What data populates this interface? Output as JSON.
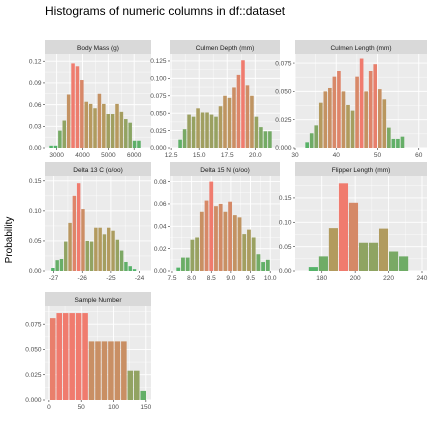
{
  "figure": {
    "title": "Histograms of numeric columns in df::dataset",
    "ylabel": "Probability",
    "colors": {
      "high": "#f07b6e",
      "mid": "#b49a5e",
      "low": "#4cb56a",
      "panel_bg": "#ebebeb",
      "strip_bg": "#d9d9d9",
      "grid": "#ffffff"
    }
  },
  "chart_data": [
    {
      "type": "bar",
      "title": "Body Mass (g)",
      "xlim": [
        2550,
        6650
      ],
      "ylim": [
        0,
        0.13
      ],
      "xticks": [
        3000,
        4000,
        5000,
        6000
      ],
      "xtick_labels": [
        "3000",
        "4000",
        "5000",
        "6000"
      ],
      "yticks": [
        0,
        0.03,
        0.06,
        0.09,
        0.12
      ],
      "ytick_labels": [
        "0.00",
        "0.03",
        "0.06",
        "0.09",
        "0.12"
      ],
      "bins": [
        {
          "x0": 2700,
          "x1": 2870,
          "y": 0.003
        },
        {
          "x0": 2870,
          "x1": 3040,
          "y": 0.003
        },
        {
          "x0": 3040,
          "x1": 3210,
          "y": 0.024
        },
        {
          "x0": 3210,
          "x1": 3380,
          "y": 0.038
        },
        {
          "x0": 3380,
          "x1": 3550,
          "y": 0.074
        },
        {
          "x0": 3550,
          "x1": 3720,
          "y": 0.117
        },
        {
          "x0": 3720,
          "x1": 3890,
          "y": 0.113
        },
        {
          "x0": 3890,
          "x1": 4060,
          "y": 0.094
        },
        {
          "x0": 4060,
          "x1": 4230,
          "y": 0.064
        },
        {
          "x0": 4230,
          "x1": 4400,
          "y": 0.061
        },
        {
          "x0": 4400,
          "x1": 4570,
          "y": 0.055
        },
        {
          "x0": 4570,
          "x1": 4740,
          "y": 0.075
        },
        {
          "x0": 4740,
          "x1": 4910,
          "y": 0.061
        },
        {
          "x0": 4910,
          "x1": 5080,
          "y": 0.047
        },
        {
          "x0": 5080,
          "x1": 5250,
          "y": 0.047
        },
        {
          "x0": 5250,
          "x1": 5420,
          "y": 0.061
        },
        {
          "x0": 5420,
          "x1": 5590,
          "y": 0.05
        },
        {
          "x0": 5590,
          "x1": 5760,
          "y": 0.04
        },
        {
          "x0": 5760,
          "x1": 5930,
          "y": 0.035
        },
        {
          "x0": 5930,
          "x1": 6100,
          "y": 0.01
        },
        {
          "x0": 6100,
          "x1": 6270,
          "y": 0.01
        }
      ]
    },
    {
      "type": "bar",
      "title": "Culmen Depth (mm)",
      "xlim": [
        12.4,
        22.2
      ],
      "ylim": [
        0,
        0.135
      ],
      "xticks": [
        12.5,
        15.0,
        17.5,
        20.0
      ],
      "xtick_labels": [
        "12.5",
        "15.0",
        "17.5",
        "20.0"
      ],
      "yticks": [
        0,
        0.025,
        0.05,
        0.075,
        0.1,
        0.125
      ],
      "ytick_labels": [
        "0.000",
        "0.025",
        "0.050",
        "0.075",
        "0.100",
        "0.125"
      ],
      "bins": [
        {
          "x0": 13.1,
          "x1": 13.5,
          "y": 0.012
        },
        {
          "x0": 13.5,
          "x1": 13.9,
          "y": 0.027
        },
        {
          "x0": 13.9,
          "x1": 14.3,
          "y": 0.048
        },
        {
          "x0": 14.3,
          "x1": 14.7,
          "y": 0.045
        },
        {
          "x0": 14.7,
          "x1": 15.1,
          "y": 0.057
        },
        {
          "x0": 15.1,
          "x1": 15.5,
          "y": 0.051
        },
        {
          "x0": 15.5,
          "x1": 15.9,
          "y": 0.051
        },
        {
          "x0": 15.9,
          "x1": 16.3,
          "y": 0.048
        },
        {
          "x0": 16.3,
          "x1": 16.7,
          "y": 0.045
        },
        {
          "x0": 16.7,
          "x1": 17.1,
          "y": 0.06
        },
        {
          "x0": 17.1,
          "x1": 17.5,
          "y": 0.075
        },
        {
          "x0": 17.5,
          "x1": 17.9,
          "y": 0.072
        },
        {
          "x0": 17.9,
          "x1": 18.3,
          "y": 0.087
        },
        {
          "x0": 18.3,
          "x1": 18.7,
          "y": 0.105
        },
        {
          "x0": 18.7,
          "x1": 19.1,
          "y": 0.126
        },
        {
          "x0": 19.1,
          "x1": 19.5,
          "y": 0.09
        },
        {
          "x0": 19.5,
          "x1": 19.9,
          "y": 0.075
        },
        {
          "x0": 19.9,
          "x1": 20.3,
          "y": 0.045
        },
        {
          "x0": 20.3,
          "x1": 20.7,
          "y": 0.03
        },
        {
          "x0": 20.7,
          "x1": 21.1,
          "y": 0.024
        },
        {
          "x0": 21.1,
          "x1": 21.5,
          "y": 0.024
        }
      ]
    },
    {
      "type": "bar",
      "title": "Culmen Length (mm)",
      "xlim": [
        30,
        62
      ],
      "ylim": [
        0,
        0.083
      ],
      "xticks": [
        30,
        40,
        50,
        60
      ],
      "xtick_labels": [
        "30",
        "40",
        "50",
        "60"
      ],
      "yticks": [
        0,
        0.025,
        0.05,
        0.075
      ],
      "ytick_labels": [
        "0.000",
        "0.025",
        "0.050",
        "0.075"
      ],
      "bins": [
        {
          "x0": 32.4,
          "x1": 33.5,
          "y": 0.005
        },
        {
          "x0": 33.5,
          "x1": 34.6,
          "y": 0.013
        },
        {
          "x0": 34.6,
          "x1": 35.7,
          "y": 0.02
        },
        {
          "x0": 35.7,
          "x1": 36.8,
          "y": 0.04
        },
        {
          "x0": 36.8,
          "x1": 37.9,
          "y": 0.05
        },
        {
          "x0": 37.9,
          "x1": 39.0,
          "y": 0.053
        },
        {
          "x0": 39.0,
          "x1": 40.1,
          "y": 0.063
        },
        {
          "x0": 40.1,
          "x1": 41.2,
          "y": 0.068
        },
        {
          "x0": 41.2,
          "x1": 42.3,
          "y": 0.05
        },
        {
          "x0": 42.3,
          "x1": 43.4,
          "y": 0.038
        },
        {
          "x0": 43.4,
          "x1": 44.5,
          "y": 0.033
        },
        {
          "x0": 44.5,
          "x1": 45.6,
          "y": 0.063
        },
        {
          "x0": 45.6,
          "x1": 46.7,
          "y": 0.079
        },
        {
          "x0": 46.7,
          "x1": 47.8,
          "y": 0.05
        },
        {
          "x0": 47.8,
          "x1": 48.9,
          "y": 0.068
        },
        {
          "x0": 48.9,
          "x1": 50.0,
          "y": 0.074
        },
        {
          "x0": 50.0,
          "x1": 51.1,
          "y": 0.052
        },
        {
          "x0": 51.1,
          "x1": 52.2,
          "y": 0.043
        },
        {
          "x0": 52.2,
          "x1": 53.3,
          "y": 0.018
        },
        {
          "x0": 53.3,
          "x1": 54.4,
          "y": 0.008
        },
        {
          "x0": 54.4,
          "x1": 55.5,
          "y": 0.008
        },
        {
          "x0": 55.5,
          "x1": 56.6,
          "y": 0.01
        }
      ]
    },
    {
      "type": "bar",
      "title": "Delta 13 C (o/oo)",
      "xlim": [
        -27.3,
        -23.6
      ],
      "ylim": [
        0,
        0.158
      ],
      "xticks": [
        -27,
        -26,
        -25,
        -24
      ],
      "xtick_labels": [
        "-27",
        "-26",
        "-25",
        "-24"
      ],
      "yticks": [
        0,
        0.05,
        0.1,
        0.15
      ],
      "ytick_labels": [
        "0.00",
        "0.05",
        "0.10",
        "0.15"
      ],
      "bins": [
        {
          "x0": -27.1,
          "x1": -26.95,
          "y": 0.005
        },
        {
          "x0": -26.95,
          "x1": -26.8,
          "y": 0.018
        },
        {
          "x0": -26.8,
          "x1": -26.65,
          "y": 0.02
        },
        {
          "x0": -26.65,
          "x1": -26.5,
          "y": 0.049
        },
        {
          "x0": -26.5,
          "x1": -26.35,
          "y": 0.08
        },
        {
          "x0": -26.35,
          "x1": -26.2,
          "y": 0.125
        },
        {
          "x0": -26.2,
          "x1": -26.05,
          "y": 0.146
        },
        {
          "x0": -26.05,
          "x1": -25.9,
          "y": 0.103
        },
        {
          "x0": -25.9,
          "x1": -25.75,
          "y": 0.05
        },
        {
          "x0": -25.75,
          "x1": -25.6,
          "y": 0.049
        },
        {
          "x0": -25.6,
          "x1": -25.45,
          "y": 0.072
        },
        {
          "x0": -25.45,
          "x1": -25.3,
          "y": 0.072
        },
        {
          "x0": -25.3,
          "x1": -25.15,
          "y": 0.061
        },
        {
          "x0": -25.15,
          "x1": -25.0,
          "y": 0.072
        },
        {
          "x0": -25.0,
          "x1": -24.85,
          "y": 0.067
        },
        {
          "x0": -24.85,
          "x1": -24.7,
          "y": 0.052
        },
        {
          "x0": -24.7,
          "x1": -24.55,
          "y": 0.034
        },
        {
          "x0": -24.55,
          "x1": -24.4,
          "y": 0.015
        },
        {
          "x0": -24.4,
          "x1": -24.25,
          "y": 0.008
        },
        {
          "x0": -24.25,
          "x1": -24.1,
          "y": 0.003
        }
      ]
    },
    {
      "type": "bar",
      "title": "Delta 15 N (o/oo)",
      "xlim": [
        7.45,
        10.25
      ],
      "ylim": [
        0,
        0.085
      ],
      "xticks": [
        7.5,
        8.0,
        8.5,
        9.0,
        9.5,
        10.0
      ],
      "xtick_labels": [
        "7.5",
        "8.0",
        "8.5",
        "9.0",
        "9.5",
        "10.0"
      ],
      "yticks": [
        0,
        0.02,
        0.04,
        0.06,
        0.08
      ],
      "ytick_labels": [
        "0.00",
        "0.02",
        "0.04",
        "0.06",
        "0.08"
      ],
      "bins": [
        {
          "x0": 7.6,
          "x1": 7.72,
          "y": 0.003
        },
        {
          "x0": 7.72,
          "x1": 7.84,
          "y": 0.012
        },
        {
          "x0": 7.84,
          "x1": 7.96,
          "y": 0.012
        },
        {
          "x0": 7.96,
          "x1": 8.08,
          "y": 0.028
        },
        {
          "x0": 8.08,
          "x1": 8.2,
          "y": 0.03
        },
        {
          "x0": 8.2,
          "x1": 8.32,
          "y": 0.053
        },
        {
          "x0": 8.32,
          "x1": 8.44,
          "y": 0.063
        },
        {
          "x0": 8.44,
          "x1": 8.56,
          "y": 0.08
        },
        {
          "x0": 8.56,
          "x1": 8.68,
          "y": 0.058
        },
        {
          "x0": 8.68,
          "x1": 8.8,
          "y": 0.06
        },
        {
          "x0": 8.8,
          "x1": 8.92,
          "y": 0.053
        },
        {
          "x0": 8.92,
          "x1": 9.04,
          "y": 0.062
        },
        {
          "x0": 9.04,
          "x1": 9.16,
          "y": 0.05
        },
        {
          "x0": 9.16,
          "x1": 9.28,
          "y": 0.048
        },
        {
          "x0": 9.28,
          "x1": 9.4,
          "y": 0.033
        },
        {
          "x0": 9.4,
          "x1": 9.52,
          "y": 0.037
        },
        {
          "x0": 9.52,
          "x1": 9.64,
          "y": 0.03
        },
        {
          "x0": 9.64,
          "x1": 9.76,
          "y": 0.015
        },
        {
          "x0": 9.76,
          "x1": 9.88,
          "y": 0.008
        },
        {
          "x0": 9.88,
          "x1": 10.0,
          "y": 0.01
        }
      ]
    },
    {
      "type": "bar",
      "title": "Flipper Length (mm)",
      "xlim": [
        164,
        243
      ],
      "ylim": [
        0,
        0.195
      ],
      "xticks": [
        180,
        200,
        220,
        240
      ],
      "xtick_labels": [
        "180",
        "200",
        "220",
        "240"
      ],
      "yticks": [
        0,
        0.05,
        0.1,
        0.15
      ],
      "ytick_labels": [
        "0.00",
        "0.05",
        "0.10",
        "0.15"
      ],
      "bins": [
        {
          "x0": 172,
          "x1": 178,
          "y": 0.008
        },
        {
          "x0": 178,
          "x1": 184,
          "y": 0.03
        },
        {
          "x0": 184,
          "x1": 190,
          "y": 0.088
        },
        {
          "x0": 190,
          "x1": 196,
          "y": 0.18
        },
        {
          "x0": 196,
          "x1": 202,
          "y": 0.14
        },
        {
          "x0": 202,
          "x1": 208,
          "y": 0.058
        },
        {
          "x0": 208,
          "x1": 214,
          "y": 0.058
        },
        {
          "x0": 214,
          "x1": 220,
          "y": 0.087
        },
        {
          "x0": 220,
          "x1": 226,
          "y": 0.04
        },
        {
          "x0": 226,
          "x1": 232,
          "y": 0.03
        }
      ]
    },
    {
      "type": "bar",
      "title": "Sample Number",
      "xlim": [
        -6,
        158
      ],
      "ylim": [
        0,
        0.093
      ],
      "xticks": [
        0,
        50,
        100,
        150
      ],
      "xtick_labels": [
        "0",
        "50",
        "100",
        "150"
      ],
      "yticks": [
        0,
        0.025,
        0.05,
        0.075
      ],
      "ytick_labels": [
        "0.000",
        "0.025",
        "0.050",
        "0.075"
      ],
      "bins": [
        {
          "x0": 1,
          "x1": 11,
          "y": 0.081
        },
        {
          "x0": 11,
          "x1": 21,
          "y": 0.086
        },
        {
          "x0": 21,
          "x1": 31,
          "y": 0.086
        },
        {
          "x0": 31,
          "x1": 41,
          "y": 0.086
        },
        {
          "x0": 41,
          "x1": 51,
          "y": 0.086
        },
        {
          "x0": 51,
          "x1": 61,
          "y": 0.086
        },
        {
          "x0": 61,
          "x1": 71,
          "y": 0.058
        },
        {
          "x0": 71,
          "x1": 81,
          "y": 0.058
        },
        {
          "x0": 81,
          "x1": 91,
          "y": 0.058
        },
        {
          "x0": 91,
          "x1": 101,
          "y": 0.058
        },
        {
          "x0": 101,
          "x1": 111,
          "y": 0.058
        },
        {
          "x0": 111,
          "x1": 121,
          "y": 0.058
        },
        {
          "x0": 121,
          "x1": 131,
          "y": 0.029
        },
        {
          "x0": 131,
          "x1": 141,
          "y": 0.029
        },
        {
          "x0": 141,
          "x1": 151,
          "y": 0.009
        }
      ]
    }
  ]
}
